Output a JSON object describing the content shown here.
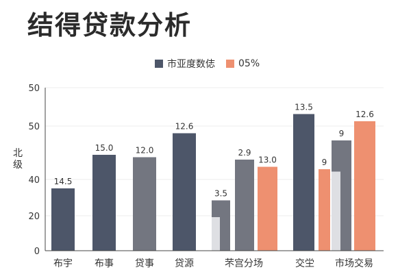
{
  "title": "结得贷款分析",
  "colors": {
    "dark": "#4d5669",
    "mid": "#737680",
    "accent": "#ee9070",
    "light": "#dedfe3",
    "axis": "#444444",
    "grid": "#ececec"
  },
  "legend": [
    {
      "label": "市亚度数俧",
      "color": "#4d5669"
    },
    {
      "label": "05%",
      "color": "#ee9070"
    }
  ],
  "chart_data": {
    "type": "bar",
    "title": "结得贷款分析",
    "ylabel": "北级",
    "xlabel": "",
    "yticks": [
      "0",
      "20",
      "40",
      "50",
      "50"
    ],
    "ylim": [
      0,
      68
    ],
    "grid": true,
    "legend_position": "top",
    "categories": [
      "布宇",
      "布事",
      "贷事",
      "贷源",
      "芣宫分场",
      "交坣",
      "市场交易"
    ],
    "bars": [
      {
        "category": "布宇",
        "value": 26,
        "label": "14.5",
        "color": "#4d5669"
      },
      {
        "category": "布事",
        "value": 40,
        "label": "15.0",
        "color": "#4d5669"
      },
      {
        "category": "贷事",
        "value": 39,
        "label": "12.0",
        "color": "#737680"
      },
      {
        "category": "贷源",
        "value": 49,
        "label": "12.6",
        "color": "#4d5669"
      },
      {
        "category": "芣宫分场",
        "value": 21,
        "label": "3.5",
        "color": "#737680",
        "inner": 14
      },
      {
        "category": "芣宫分场",
        "value": 38,
        "label": "2.9",
        "color": "#737680"
      },
      {
        "category": "芣宫分场",
        "value": 35,
        "label": "13.0",
        "color": "#ee9070"
      },
      {
        "category": "交坣",
        "value": 57,
        "label": "13.5",
        "color": "#4d5669"
      },
      {
        "category": "交坣",
        "value": 34,
        "label": "9",
        "color": "#ee9070"
      },
      {
        "category": "市场交易",
        "value": 46,
        "label": "9",
        "color": "#737680",
        "inner": 33
      },
      {
        "category": "市场交易",
        "value": 54,
        "label": "12.6",
        "color": "#ee9070"
      }
    ]
  }
}
